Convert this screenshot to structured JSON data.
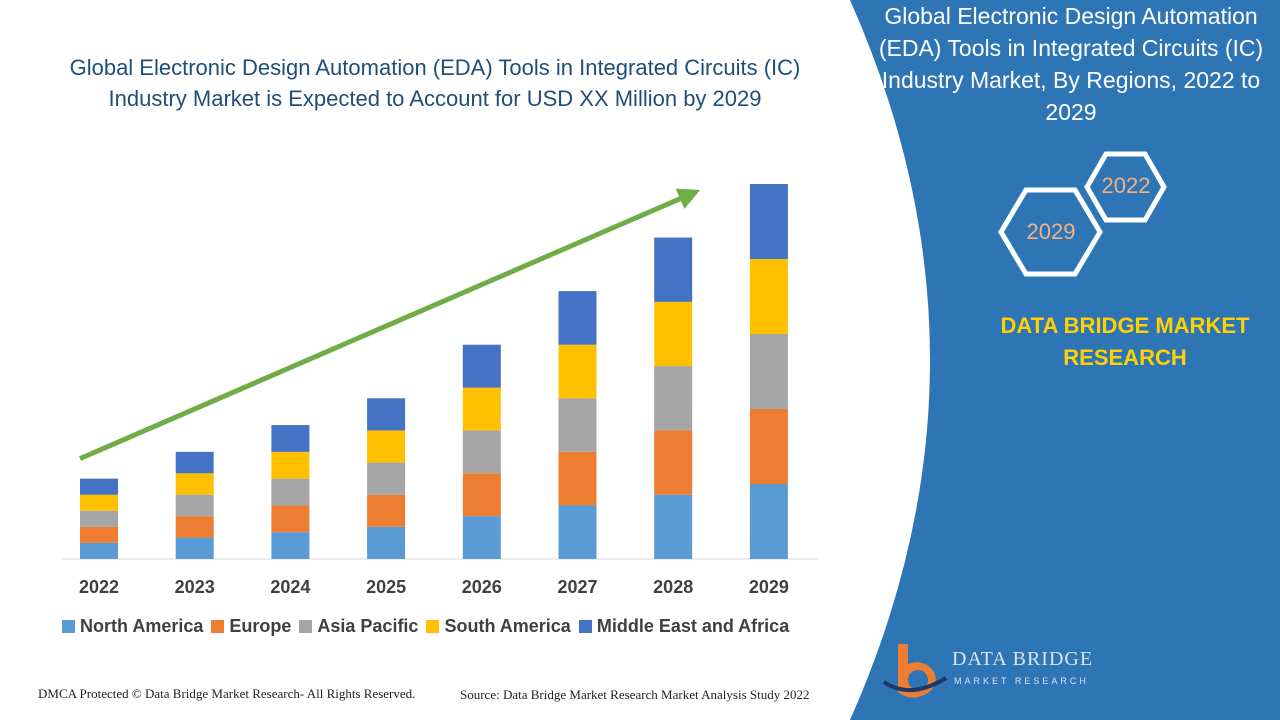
{
  "header": {
    "title": "Global Electronic Design Automation (EDA) Tools in Integrated Circuits (IC) Industry Market is Expected to Account for USD XX Million by 2029"
  },
  "side_panel": {
    "title": "Global Electronic Design Automation (EDA) Tools in Integrated Circuits (IC) Industry Market, By Regions, 2022 to 2029",
    "hex_labels": [
      "2022",
      "2029"
    ],
    "brand": "DATA BRIDGE MARKET RESEARCH"
  },
  "footer": {
    "copyright": "DMCA Protected © Data Bridge Market Research- All Rights Reserved.",
    "source": "Source: Data Bridge Market Research Market Analysis Study 2022"
  },
  "logo": {
    "name": "DATA BRIDGE",
    "tagline": "MARKET RESEARCH"
  },
  "colors": {
    "panel_blue": "#2e75b6",
    "arrow_green": "#70ad47",
    "brand_yellow": "#ffd100",
    "hex_text": "#f3b183"
  },
  "chart_data": {
    "type": "bar",
    "stacked": true,
    "categories": [
      "2022",
      "2023",
      "2024",
      "2025",
      "2026",
      "2027",
      "2028",
      "2029"
    ],
    "series": [
      {
        "name": "North America",
        "color": "#5b9bd5",
        "values": [
          3,
          4,
          5,
          6,
          8,
          10,
          12,
          14
        ]
      },
      {
        "name": "Europe",
        "color": "#ed7d31",
        "values": [
          3,
          4,
          5,
          6,
          8,
          10,
          12,
          14
        ]
      },
      {
        "name": "Asia Pacific",
        "color": "#a5a5a5",
        "values": [
          3,
          4,
          5,
          6,
          8,
          10,
          12,
          14
        ]
      },
      {
        "name": "South America",
        "color": "#ffc000",
        "values": [
          3,
          4,
          5,
          6,
          8,
          10,
          12,
          14
        ]
      },
      {
        "name": "Middle East and Africa",
        "color": "#4472c4",
        "values": [
          3,
          4,
          5,
          6,
          8,
          10,
          12,
          14
        ]
      }
    ],
    "ylim": [
      0,
      70
    ],
    "grid": false,
    "legend_position": "bottom",
    "annotations": [
      "upward trend arrow"
    ]
  }
}
